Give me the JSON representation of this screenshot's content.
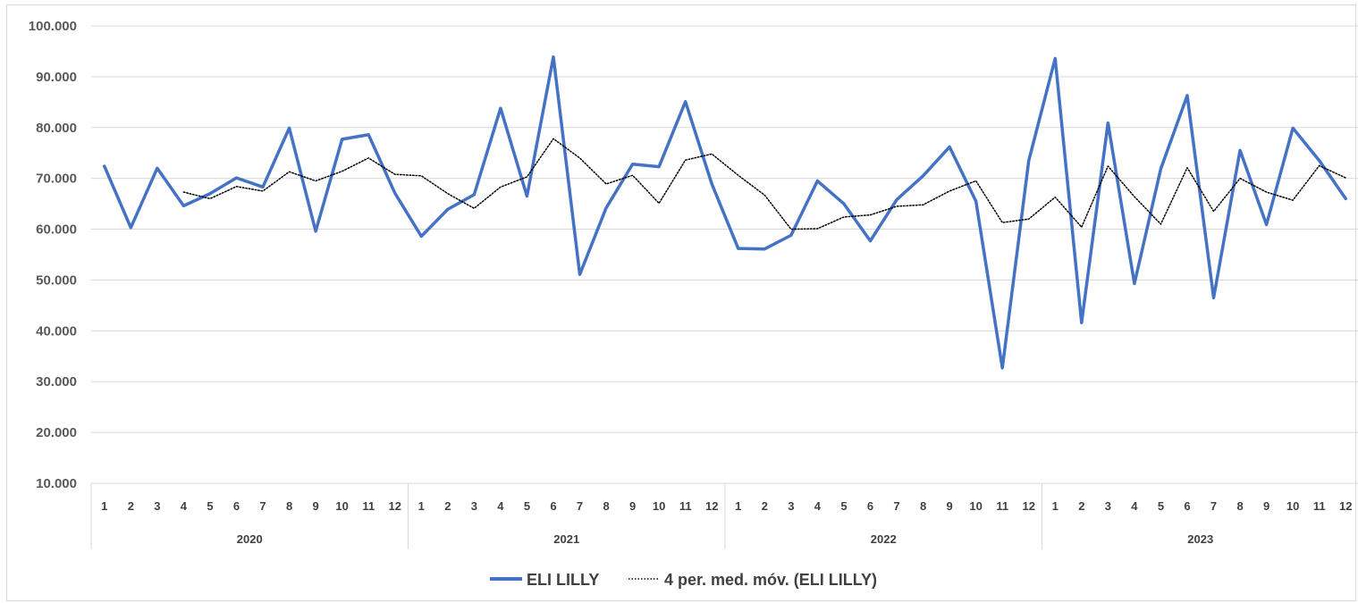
{
  "chart_data": {
    "type": "line",
    "title": "",
    "xlabel": "",
    "ylabel": "",
    "ylim": [
      10000,
      100000
    ],
    "yticks": [
      "10.000",
      "20.000",
      "30.000",
      "40.000",
      "50.000",
      "60.000",
      "70.000",
      "80.000",
      "90.000",
      "100.000"
    ],
    "ytick_values": [
      10000,
      20000,
      30000,
      40000,
      50000,
      60000,
      70000,
      80000,
      90000,
      100000
    ],
    "grid": true,
    "legend_position": "bottom",
    "years": [
      "2020",
      "2021",
      "2022",
      "2023"
    ],
    "months": [
      "1",
      "2",
      "3",
      "4",
      "5",
      "6",
      "7",
      "8",
      "9",
      "10",
      "11",
      "12"
    ],
    "series": [
      {
        "name": "ELI LILLY",
        "color": "#4472c4",
        "style": "solid",
        "values": [
          72400,
          60300,
          72000,
          64600,
          67000,
          70100,
          68300,
          79900,
          59600,
          77700,
          78600,
          67100,
          58600,
          63900,
          66800,
          83800,
          66500,
          93900,
          51100,
          64200,
          72800,
          72300,
          85100,
          68900,
          56200,
          56100,
          58800,
          69500,
          65000,
          57700,
          65800,
          70500,
          76200,
          65500,
          32700,
          73500,
          93600,
          41600,
          80900,
          49300,
          71900,
          86300,
          46500,
          75500,
          60900,
          79900,
          73500,
          66000
        ]
      },
      {
        "name": "4 per. med. móv. (ELI LILLY)",
        "color": "#000000",
        "style": "dotted",
        "values": [
          null,
          null,
          null,
          67300,
          66000,
          68400,
          67500,
          71300,
          69500,
          71400,
          74000,
          70800,
          70500,
          67000,
          64100,
          68300,
          70300,
          77800,
          74000,
          68900,
          70600,
          65100,
          73600,
          74800,
          70600,
          66700,
          60000,
          60100,
          62400,
          62800,
          64500,
          64800,
          67500,
          69500,
          61300,
          62000,
          66300,
          60400,
          72400,
          66400,
          61000,
          72100,
          63500,
          70000,
          67300,
          65700,
          72500,
          70100
        ]
      }
    ]
  },
  "legend": {
    "items": [
      "ELI LILLY",
      "4 per. med. móv. (ELI LILLY)"
    ]
  }
}
